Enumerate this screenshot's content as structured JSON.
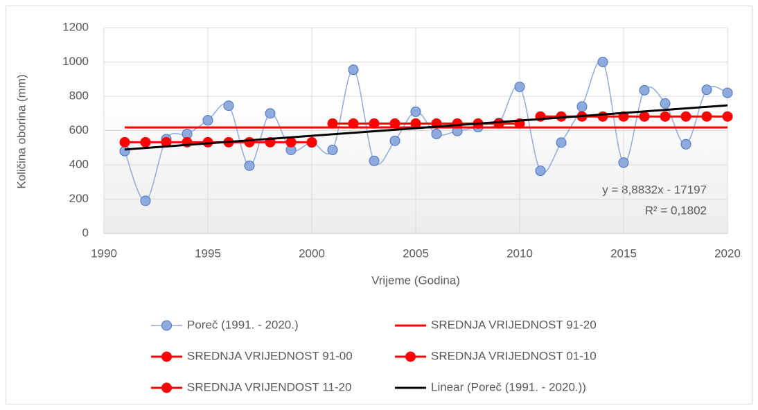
{
  "chart_data": {
    "type": "line",
    "xlabel": "Vrijeme (Godina)",
    "ylabel": "Količina oborina (mm)",
    "xlim": [
      1990,
      2020
    ],
    "xticks": [
      1990,
      1995,
      2000,
      2005,
      2010,
      2015,
      2020
    ],
    "ylim": [
      0,
      1200
    ],
    "yticks": [
      0,
      200,
      400,
      600,
      800,
      1000,
      1200
    ],
    "grid": true,
    "legend": "bottom",
    "annotations": [
      "y = 8,8832x - 17197",
      "R² = 0,1802"
    ],
    "series": [
      {
        "name": "Poreč (1991. - 2020.)",
        "color": "#8faadc",
        "marker_edge": "#4472c4",
        "marker": true,
        "smooth": true,
        "x": [
          1991,
          1992,
          1993,
          1994,
          1995,
          1996,
          1997,
          1998,
          1999,
          2000,
          2001,
          2002,
          2003,
          2004,
          2005,
          2006,
          2007,
          2008,
          2009,
          2010,
          2011,
          2012,
          2013,
          2014,
          2015,
          2016,
          2017,
          2018,
          2019,
          2020
        ],
        "values": [
          480,
          190,
          550,
          580,
          660,
          745,
          395,
          700,
          487,
          530,
          487,
          955,
          423,
          540,
          710,
          580,
          597,
          620,
          645,
          855,
          365,
          530,
          740,
          1000,
          413,
          835,
          758,
          520,
          838,
          820
        ]
      },
      {
        "name": "SREDNJA VRIJEDNOST 91-20",
        "color": "#ff0000",
        "marker": false,
        "x": [
          1991,
          2020
        ],
        "values": [
          618,
          618
        ]
      },
      {
        "name": "SREDNJA VRIJEDNOST 91-00",
        "color": "#ff0000",
        "marker": true,
        "x": [
          1991,
          1992,
          1993,
          1994,
          1995,
          1996,
          1997,
          1998,
          1999,
          2000
        ],
        "values": [
          532,
          532,
          532,
          532,
          532,
          532,
          532,
          532,
          532,
          532
        ]
      },
      {
        "name": "SREDNJA VRIJEDNOST 01-10",
        "color": "#ff0000",
        "marker": true,
        "x": [
          2001,
          2002,
          2003,
          2004,
          2005,
          2006,
          2007,
          2008,
          2009,
          2010
        ],
        "values": [
          641,
          641,
          641,
          641,
          641,
          641,
          641,
          641,
          641,
          641
        ]
      },
      {
        "name": "SREDNJA VRIJENDOST 11-20",
        "color": "#ff0000",
        "marker": true,
        "x": [
          2011,
          2012,
          2013,
          2014,
          2015,
          2016,
          2017,
          2018,
          2019,
          2020
        ],
        "values": [
          682,
          682,
          682,
          682,
          682,
          682,
          682,
          682,
          682,
          682
        ]
      },
      {
        "name": "Linear (Poreč (1991. - 2020.))",
        "color": "#000000",
        "marker": false,
        "width": 3,
        "x": [
          1991,
          2020
        ],
        "values": [
          489.5,
          747
        ]
      }
    ]
  }
}
